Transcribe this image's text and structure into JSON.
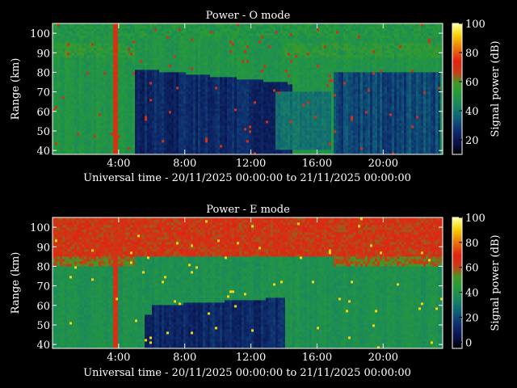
{
  "chart_data": [
    {
      "type": "heatmap",
      "title": "Power - O mode",
      "xlabel": "Universal time - 20/11/2025 00:00:00 to 21/11/2025 00:00:00",
      "ylabel": "Range (km)",
      "colorbar_label": "Signal power (dB)",
      "x_ticks": [
        "4:00",
        "8:00",
        "12:00",
        "16:00",
        "20:00"
      ],
      "x_tick_hours": [
        4,
        8,
        12,
        16,
        20
      ],
      "xlim_hours": [
        0,
        23.6
      ],
      "y_ticks": [
        40,
        50,
        60,
        70,
        80,
        90,
        100
      ],
      "ylim": [
        38,
        105
      ],
      "colorbar_ticks": [
        20,
        40,
        60,
        80,
        100
      ],
      "colorbar_range": [
        10,
        100
      ],
      "pattern": "o"
    },
    {
      "type": "heatmap",
      "title": "Power - E mode",
      "xlabel": "Universal time - 20/11/2025 00:00:00 to 21/11/2025 00:00:00",
      "ylabel": "Range (km)",
      "colorbar_label": "Signal power (dB)",
      "x_ticks": [
        "4:00",
        "8:00",
        "12:00",
        "16:00",
        "20:00"
      ],
      "x_tick_hours": [
        4,
        8,
        12,
        16,
        20
      ],
      "xlim_hours": [
        0,
        23.6
      ],
      "y_ticks": [
        40,
        50,
        60,
        70,
        80,
        90,
        100
      ],
      "ylim": [
        38,
        105
      ],
      "colorbar_ticks": [
        0,
        20,
        40,
        60,
        80,
        100
      ],
      "colorbar_range": [
        -5,
        100
      ],
      "pattern": "e"
    }
  ]
}
